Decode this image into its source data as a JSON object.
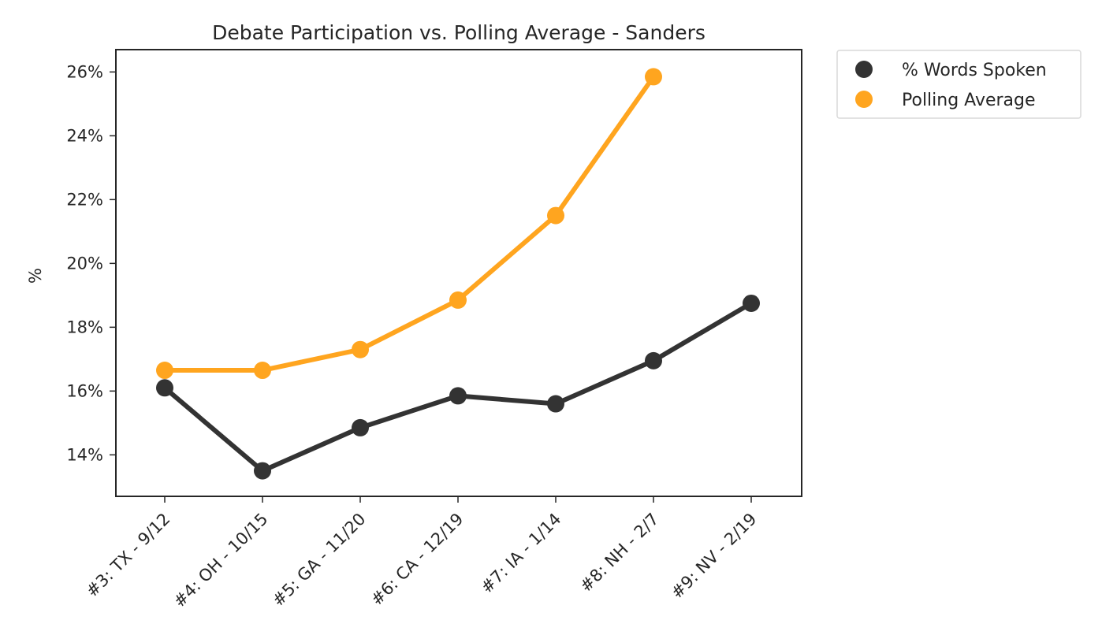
{
  "chart_data": {
    "type": "line",
    "title": "Debate Participation vs. Polling Average - Sanders",
    "xlabel": "",
    "ylabel": "%",
    "categories": [
      "#3: TX - 9/12",
      "#4: OH - 10/15",
      "#5: GA - 11/20",
      "#6: CA - 12/19",
      "#7: IA - 1/14",
      "#8: NH - 2/7",
      "#9: NV - 2/19"
    ],
    "ylim": [
      12.7,
      26.7
    ],
    "yticks": [
      14,
      16,
      18,
      20,
      22,
      24,
      26
    ],
    "ytick_labels": [
      "14%",
      "16%",
      "18%",
      "20%",
      "22%",
      "24%",
      "26%"
    ],
    "grid": false,
    "legend_position": "outside-top-right",
    "series": [
      {
        "name": "% Words Spoken",
        "color": "#333333",
        "values": [
          16.1,
          13.5,
          14.85,
          15.85,
          15.6,
          16.95,
          18.75
        ]
      },
      {
        "name": "Polling Average",
        "color": "#ffa51f",
        "values": [
          16.65,
          16.65,
          17.3,
          18.85,
          21.5,
          25.85,
          null
        ]
      }
    ]
  }
}
